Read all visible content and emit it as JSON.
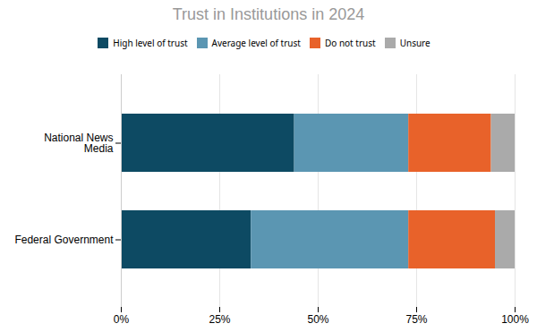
{
  "chart_data": {
    "type": "bar",
    "title": "Trust in Institutions in 2024",
    "orientation": "horizontal",
    "stacked": true,
    "categories": [
      "National News\nMedia",
      "Federal Government"
    ],
    "series": [
      {
        "name": "High level of trust",
        "color": "#0d4a63",
        "values": [
          44,
          33
        ]
      },
      {
        "name": "Average level of trust",
        "color": "#5b96b2",
        "values": [
          29,
          40
        ]
      },
      {
        "name": "Do not trust",
        "color": "#e8622a",
        "values": [
          21,
          22
        ]
      },
      {
        "name": "Unsure",
        "color": "#aaaaaa",
        "values": [
          6,
          5
        ]
      }
    ],
    "xlim": [
      0,
      100
    ],
    "xticks": [
      {
        "value": 0,
        "label": "0%"
      },
      {
        "value": 25,
        "label": "25%"
      },
      {
        "value": 50,
        "label": "50%"
      },
      {
        "value": 75,
        "label": "75%"
      },
      {
        "value": 100,
        "label": "100%"
      }
    ],
    "grid": true,
    "legend": "top"
  }
}
